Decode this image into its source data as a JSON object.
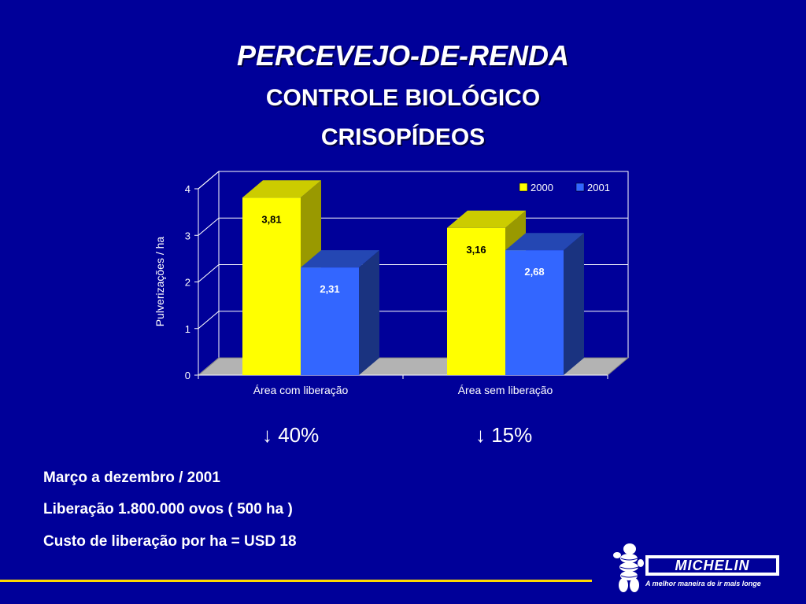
{
  "header": {
    "title": "PERCEVEJO-DE-RENDA",
    "subtitle1": "CONTROLE BIOLÓGICO",
    "subtitle2": "CRISOPÍDEOS"
  },
  "chart_data": {
    "type": "bar",
    "categories": [
      "Área com liberação",
      "Área sem liberação"
    ],
    "series": [
      {
        "name": "2000",
        "values": [
          3.81,
          3.16
        ],
        "labels": [
          "3,81",
          "3,16"
        ],
        "color": "#ffff00"
      },
      {
        "name": "2001",
        "values": [
          2.31,
          2.68
        ],
        "labels": [
          "2,31",
          "2,68"
        ],
        "color": "#3366ff"
      }
    ],
    "ylabel": "Pulverizações / ha",
    "ylim": [
      0,
      4
    ],
    "yticks": [
      "0",
      "1",
      "2",
      "3",
      "4"
    ],
    "grid": true,
    "legend_position": "top-right"
  },
  "reductions": [
    "↓ 40%",
    "↓ 15%"
  ],
  "info_lines": [
    "Março a dezembro / 2001",
    "Liberação 1.800.000 ovos ( 500 ha )",
    "Custo de liberação por ha = USD 18"
  ],
  "logo": {
    "brand": "MICHELIN",
    "slogan": "A melhor maneira de ir mais longe"
  }
}
